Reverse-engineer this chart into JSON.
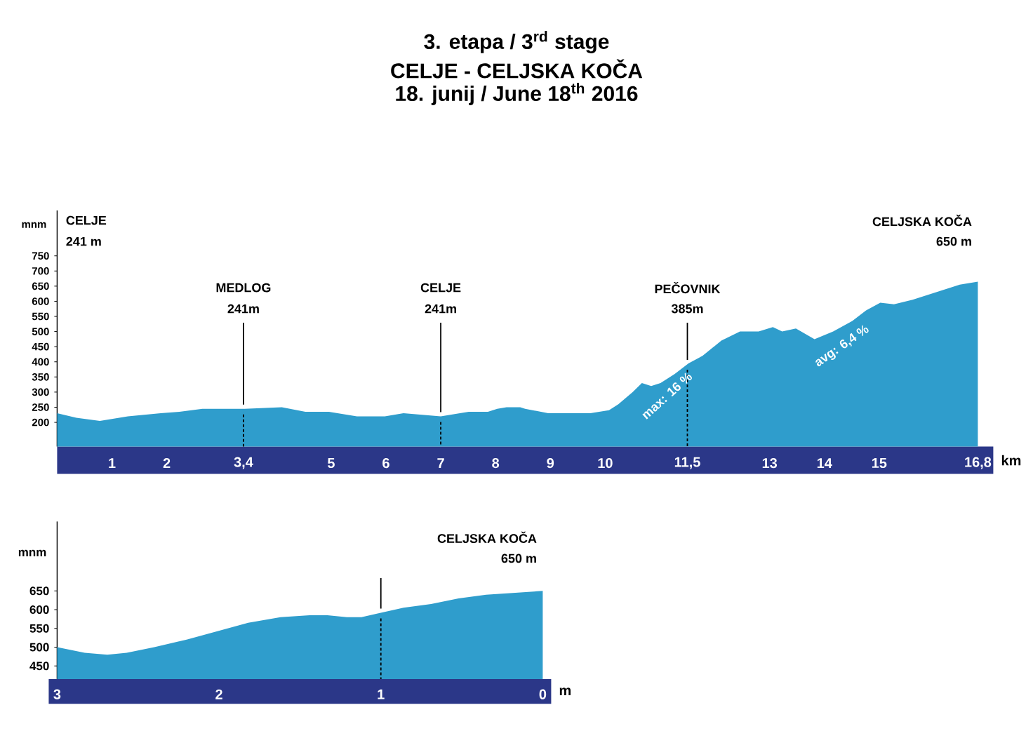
{
  "chart_data": [
    {
      "type": "area",
      "title": "3. etapa / 3$^{rd}$ stage",
      "subtitle": "CELJE - CELJSKA KOČA",
      "xlabel": "km",
      "ylabel": "mnm",
      "color": "#2f9dcc",
      "x": [
        0,
        0.35,
        0.78,
        1.29,
        1.89,
        2.23,
        2.65,
        3.42,
        4.1,
        4.53,
        4.96,
        5.47,
        5.98,
        6.32,
        6.66,
        7.0,
        7.35,
        7.51,
        7.86,
        8.03,
        8.2,
        8.45,
        8.54,
        8.96,
        9.73,
        10.07,
        10.24,
        10.5,
        10.67,
        10.84,
        11.01,
        11.27,
        11.52,
        11.78,
        12.12,
        12.46,
        12.8,
        13.06,
        13.23,
        13.48,
        13.82,
        14.16,
        14.51,
        14.76,
        15.02,
        15.27,
        15.61,
        16.04,
        16.47,
        16.8
      ],
      "values": [
        230,
        215,
        205,
        220,
        230,
        235,
        245,
        245,
        250,
        235,
        235,
        220,
        220,
        230,
        225,
        220,
        230,
        235,
        235,
        245,
        250,
        250,
        245,
        230,
        230,
        240,
        260,
        300,
        330,
        320,
        330,
        360,
        395,
        420,
        470,
        500,
        500,
        515,
        500,
        510,
        475,
        500,
        535,
        570,
        595,
        590,
        605,
        630,
        655,
        665
      ],
      "xlim": [
        0,
        16.8
      ],
      "ylim": [
        120,
        900
      ],
      "xticks": [
        1,
        2,
        {
          "value": 3.4,
          "label": "3,4"
        },
        5,
        6,
        7,
        8,
        9,
        10,
        {
          "value": 11.5,
          "label": "11,5"
        },
        13,
        14,
        15,
        {
          "value": 16.8,
          "label": "16,8"
        }
      ],
      "yticks": [
        200,
        250,
        300,
        350,
        400,
        450,
        500,
        550,
        600,
        650,
        700,
        750
      ],
      "ref_lines": [
        {
          "axis": "x",
          "value": 3.4
        },
        {
          "axis": "x",
          "value": 7
        },
        {
          "axis": "x",
          "value": 11.5
        }
      ],
      "annotations": [
        "18. junij / June 18$^{th}$ 2016",
        "CELJE",
        "241 m",
        "MEDLOG",
        "241m",
        "CELJE",
        "241m",
        "PEČOVNIK",
        "385m",
        "CELJSKA KOČA",
        "650 m",
        "max: 16 %",
        "avg: 6,4 %"
      ]
    },
    {
      "type": "area",
      "xlabel": "m",
      "ylabel": "mnm",
      "color": "#2f9dcc",
      "x": [
        3,
        2.83,
        2.69,
        2.57,
        2.4,
        2.2,
        1.99,
        1.82,
        1.62,
        1.44,
        1.33,
        1.21,
        1.12,
        1.02,
        0.86,
        0.69,
        0.52,
        0.35,
        0.17,
        0
      ],
      "values": [
        500,
        485,
        480,
        485,
        500,
        520,
        545,
        565,
        580,
        585,
        585,
        580,
        580,
        590,
        605,
        615,
        630,
        640,
        645,
        650
      ],
      "xlim": [
        3,
        0
      ],
      "ylim": [
        415,
        835
      ],
      "xticks": [
        3,
        2,
        1,
        0
      ],
      "yticks": [
        450,
        500,
        550,
        600,
        650
      ],
      "ref_lines": [
        {
          "axis": "x",
          "value": 1
        }
      ],
      "annotations": [
        "CELJSKA KOČA",
        "650 m"
      ]
    }
  ]
}
